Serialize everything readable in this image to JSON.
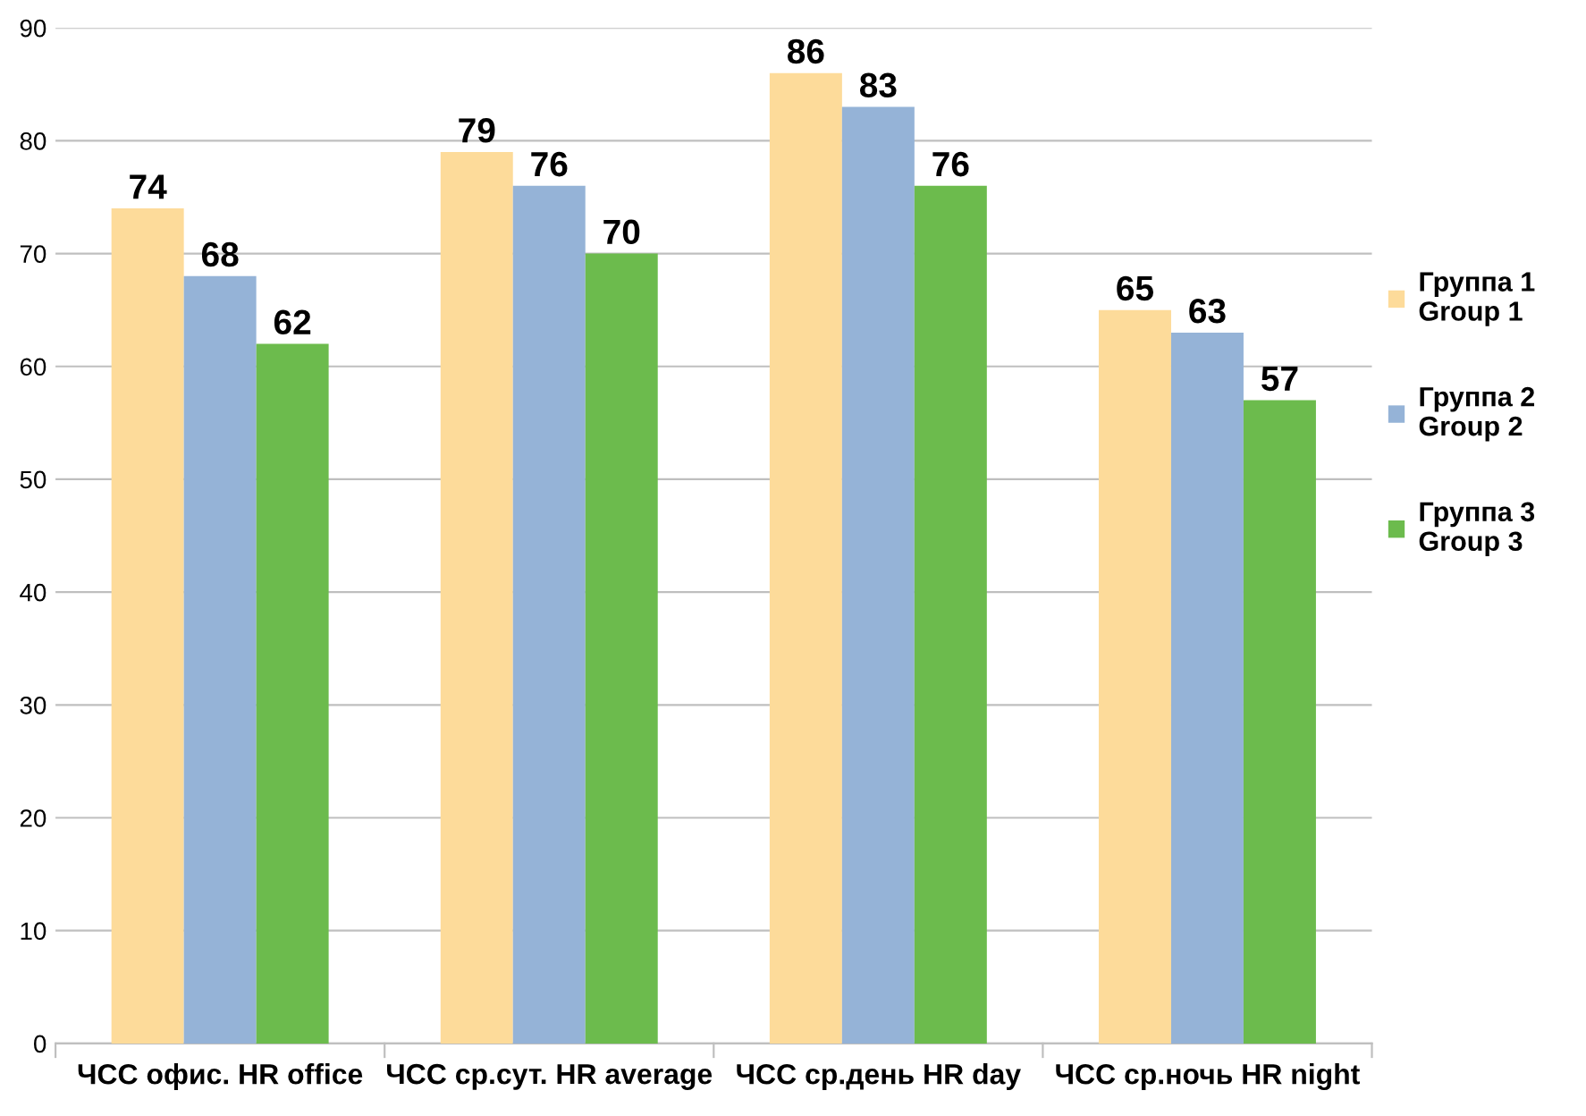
{
  "chart_data": {
    "type": "bar",
    "categories": [
      "ЧСС офис. HR office",
      "ЧСС ср.сут. HR average",
      "ЧСС ср.день HR day",
      "ЧСС ср.ночь HR night"
    ],
    "series": [
      {
        "name": "Группа 1\nGroup 1",
        "color": "#fddb9a",
        "values": [
          74,
          79,
          86,
          65
        ]
      },
      {
        "name": "Группа 2\nGroup 2",
        "color": "#95b3d7",
        "values": [
          68,
          76,
          83,
          63
        ]
      },
      {
        "name": "Группа 3\nGroup 3",
        "color": "#6cbb4d",
        "values": [
          62,
          70,
          76,
          57
        ]
      }
    ],
    "ylim": [
      0,
      90
    ],
    "yticks": [
      0,
      10,
      20,
      30,
      40,
      50,
      60,
      70,
      80,
      90
    ],
    "grid": "y",
    "legend": "right",
    "data_labels": true
  }
}
